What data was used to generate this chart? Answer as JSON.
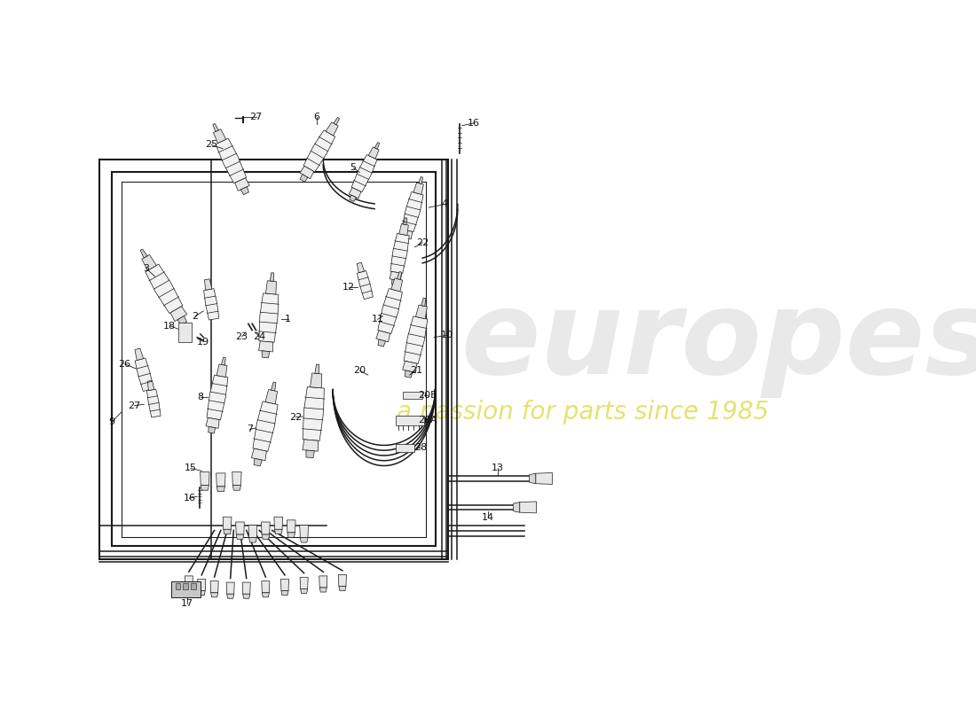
{
  "bg_color": "#ffffff",
  "line_color": "#1a1a1a",
  "label_color": "#111111",
  "watermark_main": "europes",
  "watermark_sub": "a passion for parts since 1985",
  "watermark_gray": "#aaaaaa",
  "watermark_yellow": "#cccc00",
  "figsize": [
    11.0,
    8.0
  ],
  "dpi": 100
}
